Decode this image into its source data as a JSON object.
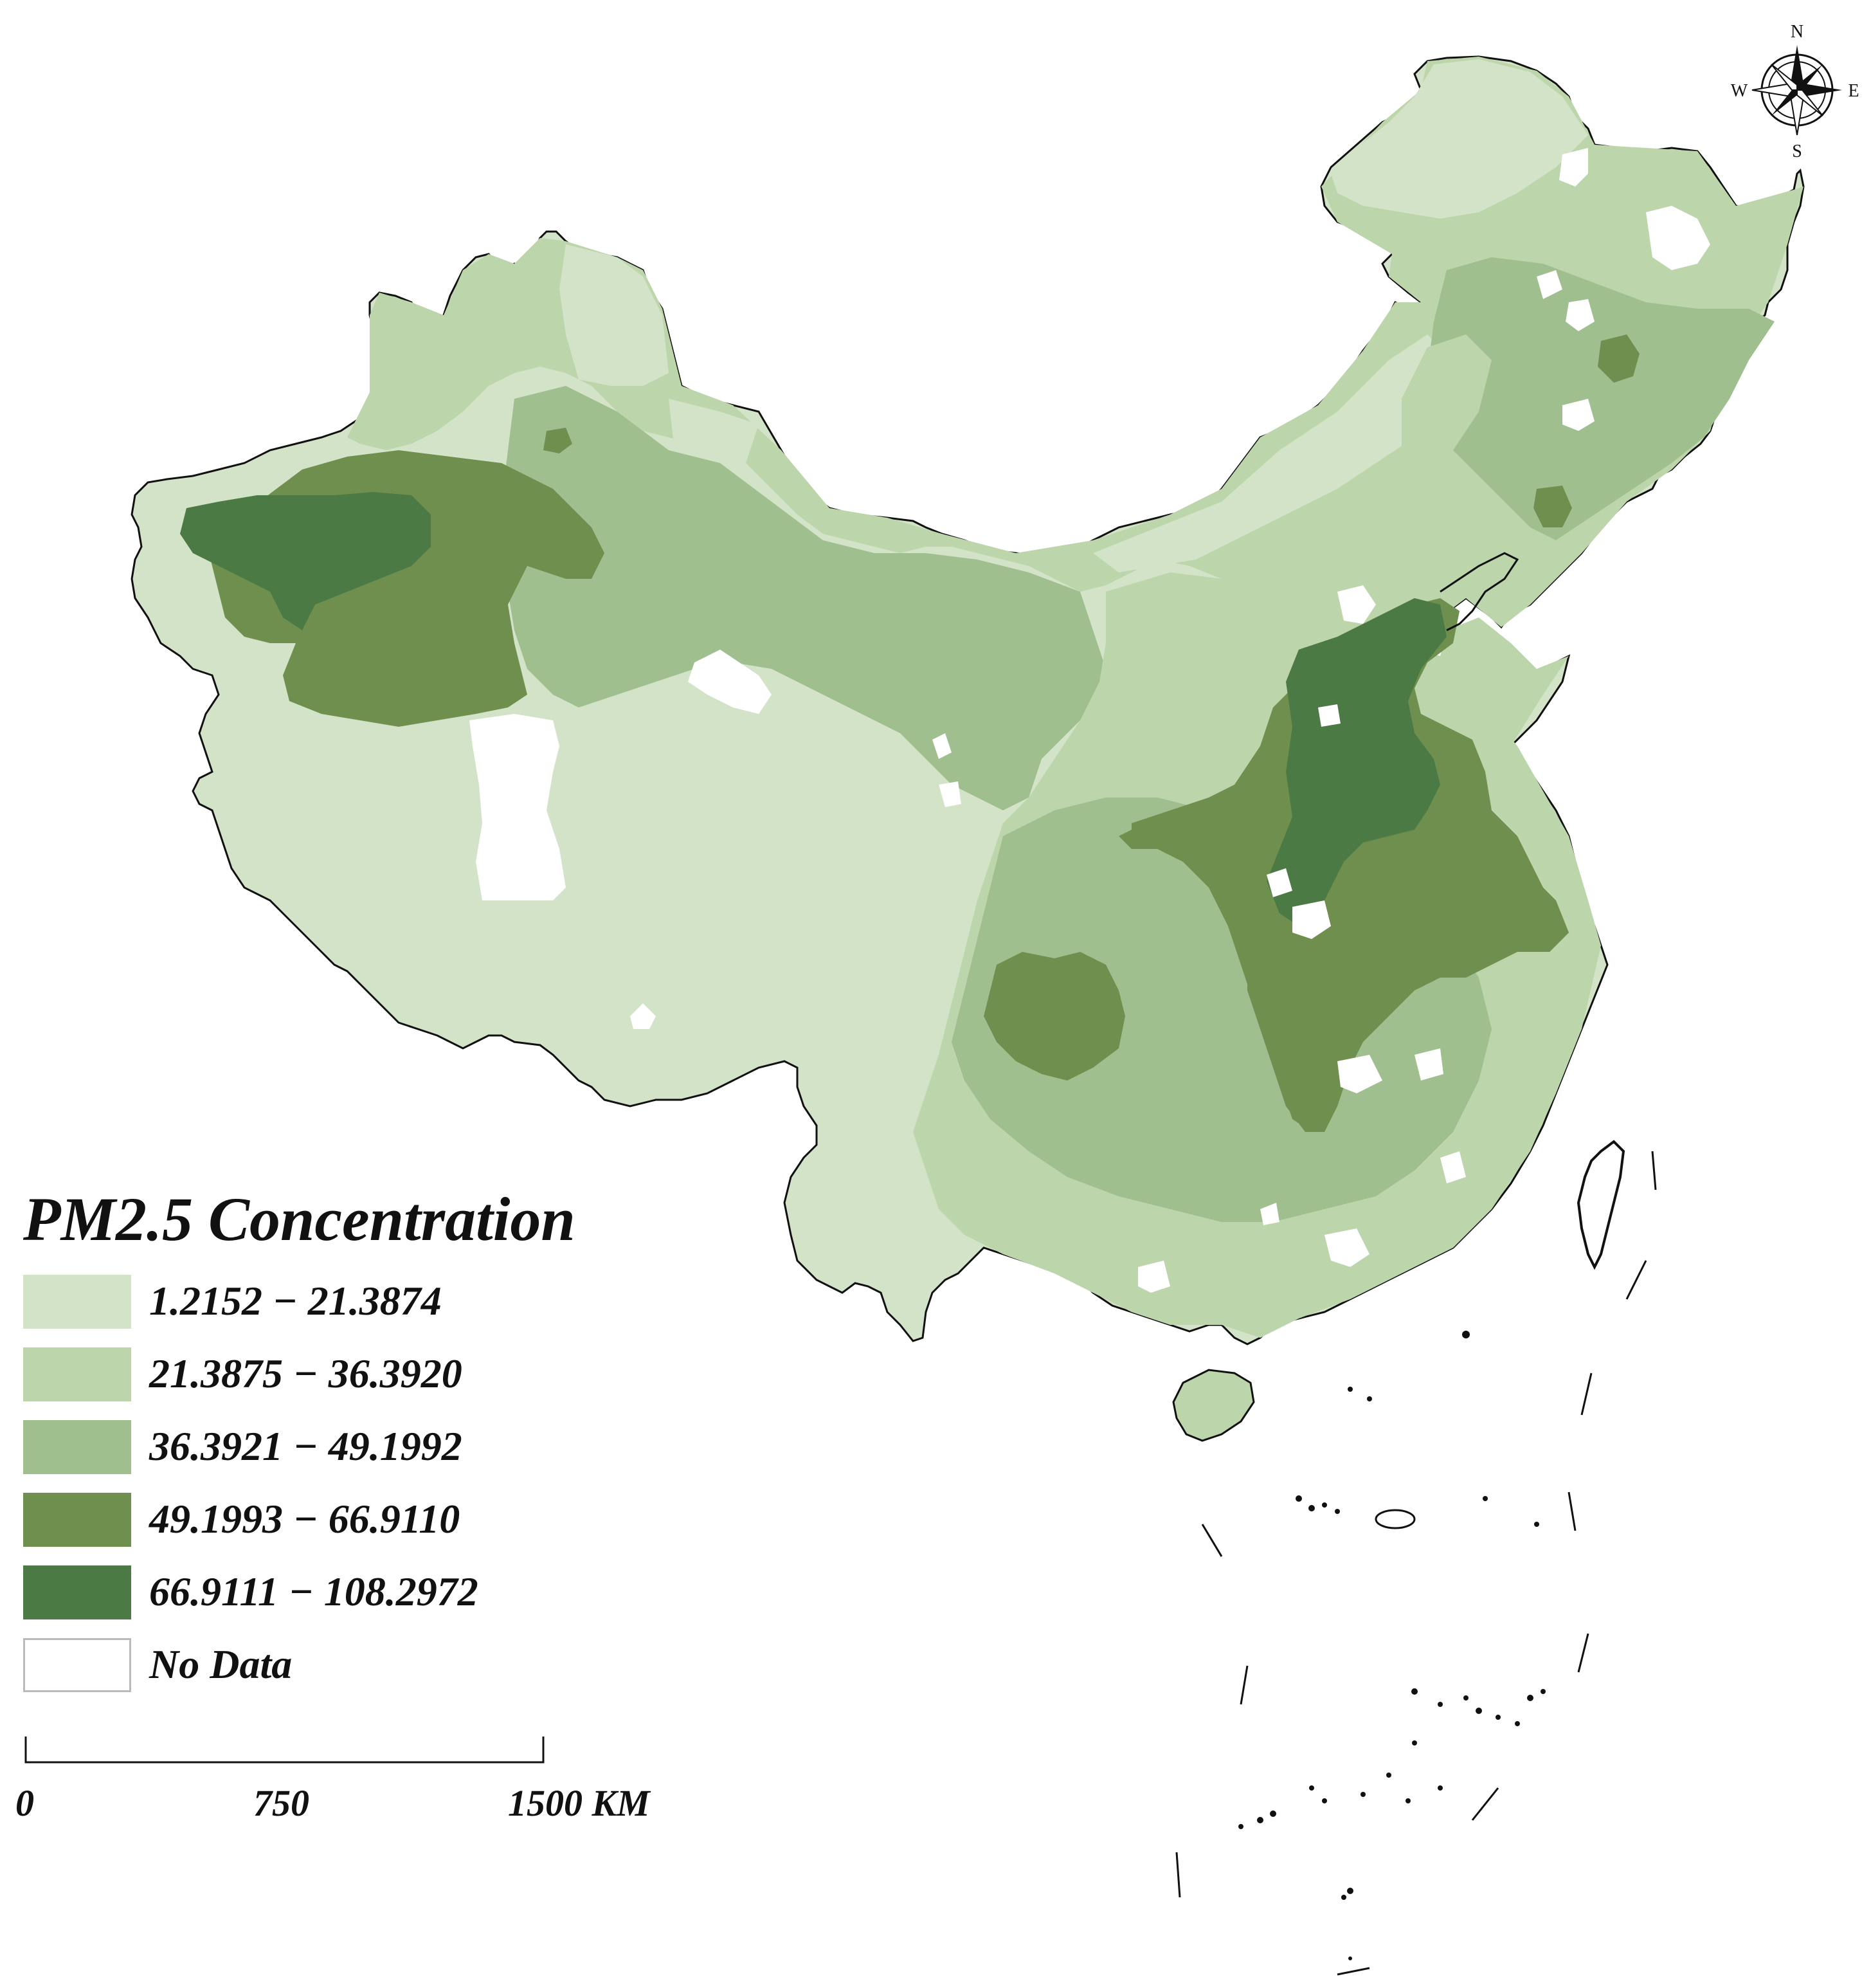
{
  "legend": {
    "title": "PM2.5 Concentration",
    "items": [
      {
        "label": "1.2152 − 21.3874",
        "color": "#d3e3c8"
      },
      {
        "label": "21.3875 − 36.3920",
        "color": "#bcd5ab"
      },
      {
        "label": "36.3921 − 49.1992",
        "color": "#9fbf8f"
      },
      {
        "label": "49.1993 − 66.9110",
        "color": "#6f8f4f"
      },
      {
        "label": "66.9111 − 108.2972",
        "color": "#4c7a45"
      },
      {
        "label": "No Data",
        "color": "#ffffff"
      }
    ]
  },
  "scale_bar": {
    "labels": [
      "0",
      "750",
      "1500 KM"
    ]
  },
  "compass": {
    "north": "N",
    "south": "S",
    "east": "E",
    "west": "W"
  }
}
